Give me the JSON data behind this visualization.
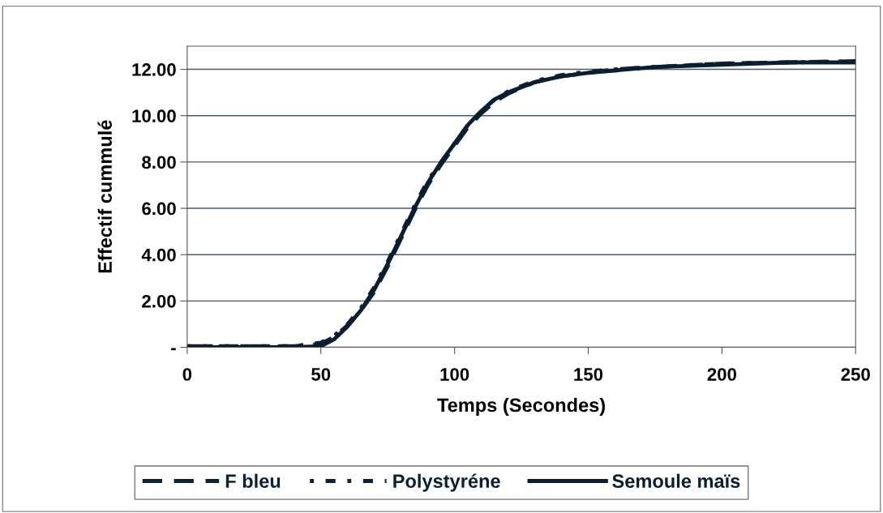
{
  "chart_data": {
    "type": "line",
    "xlabel": "Temps (Secondes)",
    "ylabel": "Effectif cummulé",
    "xlim": [
      0,
      250
    ],
    "xticks": [
      0,
      50,
      100,
      150,
      200,
      250
    ],
    "ylim": [
      0,
      13
    ],
    "yticks": [
      {
        "value": 0,
        "label": "-"
      },
      {
        "value": 2,
        "label": "2.00"
      },
      {
        "value": 4,
        "label": "4.00"
      },
      {
        "value": 6,
        "label": "6.00"
      },
      {
        "value": 8,
        "label": "8.00"
      },
      {
        "value": 10,
        "label": "10.00"
      },
      {
        "value": 12,
        "label": "12.00"
      }
    ],
    "grid": "y",
    "legend": "bottom",
    "marker": "none",
    "x": [
      0,
      20,
      40,
      50,
      55,
      60,
      65,
      70,
      75,
      80,
      85,
      90,
      95,
      100,
      105,
      110,
      115,
      120,
      130,
      140,
      150,
      160,
      175,
      200,
      225,
      250
    ],
    "series": [
      {
        "name": "F bleu",
        "color": "#0d2236",
        "line_style": "dashed",
        "values": [
          0.05,
          0.05,
          0.05,
          0.15,
          0.45,
          0.95,
          1.6,
          2.4,
          3.5,
          4.7,
          5.9,
          7.0,
          7.9,
          8.7,
          9.5,
          10.1,
          10.6,
          10.95,
          11.45,
          11.7,
          11.85,
          12.0,
          12.1,
          12.25,
          12.3,
          12.35
        ]
      },
      {
        "name": "Polystyréne",
        "color": "#0b2033",
        "line_style": "dotted",
        "values": [
          0.05,
          0.05,
          0.05,
          0.2,
          0.5,
          1.0,
          1.7,
          2.6,
          3.7,
          4.9,
          6.1,
          7.2,
          8.0,
          8.8,
          9.6,
          10.2,
          10.7,
          11.05,
          11.5,
          11.75,
          11.9,
          12.0,
          12.1,
          12.25,
          12.3,
          12.35
        ]
      },
      {
        "name": "Semoule maïs",
        "color": "#091e30",
        "line_style": "solid",
        "values": [
          0.0,
          0.0,
          0.0,
          0.05,
          0.35,
          0.9,
          1.6,
          2.5,
          3.6,
          4.8,
          6.0,
          7.1,
          8.0,
          8.8,
          9.6,
          10.2,
          10.7,
          11.0,
          11.45,
          11.7,
          11.85,
          11.95,
          12.1,
          12.2,
          12.3,
          12.3
        ]
      }
    ]
  }
}
